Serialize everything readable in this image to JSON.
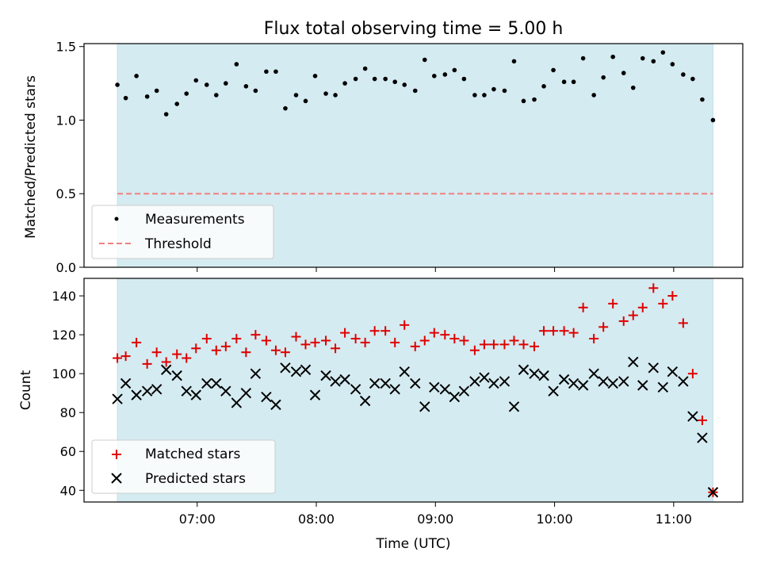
{
  "chart_data": [
    {
      "type": "scatter",
      "title": "Flux total observing time = 5.00 h",
      "ylabel": "Matched/Predicted stars",
      "xlabel": "",
      "ylim": [
        0,
        1.52
      ],
      "yticks": [
        "0.0",
        "0.5",
        "1.0",
        "1.5"
      ],
      "legend_position": "lower-left",
      "shaded_interval": {
        "start_hours": 6.33,
        "end_hours": 11.33,
        "color": "#d4ebf1"
      },
      "series": [
        {
          "name": "Measurements",
          "marker": "dot",
          "color": "#000000",
          "x": [
            6.33,
            6.4,
            6.49,
            6.58,
            6.66,
            6.74,
            6.83,
            6.91,
            6.99,
            7.08,
            7.16,
            7.24,
            7.33,
            7.41,
            7.49,
            7.58,
            7.66,
            7.74,
            7.83,
            7.91,
            7.99,
            8.08,
            8.16,
            8.24,
            8.33,
            8.41,
            8.49,
            8.58,
            8.66,
            8.74,
            8.83,
            8.91,
            8.99,
            9.08,
            9.16,
            9.24,
            9.33,
            9.41,
            9.49,
            9.58,
            9.66,
            9.74,
            9.83,
            9.91,
            9.99,
            10.08,
            10.16,
            10.24,
            10.33,
            10.41,
            10.49,
            10.58,
            10.66,
            10.74,
            10.83,
            10.91,
            10.99,
            11.08,
            11.16,
            11.24,
            11.33
          ],
          "y": [
            1.24,
            1.15,
            1.3,
            1.16,
            1.2,
            1.04,
            1.11,
            1.18,
            1.27,
            1.24,
            1.17,
            1.25,
            1.38,
            1.23,
            1.2,
            1.33,
            1.33,
            1.08,
            1.17,
            1.13,
            1.3,
            1.18,
            1.17,
            1.25,
            1.28,
            1.35,
            1.28,
            1.28,
            1.26,
            1.24,
            1.2,
            1.41,
            1.3,
            1.31,
            1.34,
            1.28,
            1.17,
            1.17,
            1.21,
            1.2,
            1.4,
            1.13,
            1.14,
            1.23,
            1.34,
            1.26,
            1.26,
            1.42,
            1.17,
            1.29,
            1.43,
            1.32,
            1.22,
            1.42,
            1.4,
            1.46,
            1.38,
            1.31,
            1.28,
            1.14,
            1.0
          ]
        },
        {
          "name": "Threshold",
          "marker": "dashed-line",
          "color": "#f08080",
          "y_value": 0.5
        }
      ]
    },
    {
      "type": "scatter",
      "title": "",
      "ylabel": "Count",
      "xlabel": "Time (UTC)",
      "ylim": [
        34,
        149
      ],
      "yticks": [
        "40",
        "60",
        "80",
        "100",
        "120",
        "140"
      ],
      "xlim_hours": [
        6.05,
        11.58
      ],
      "xticks": [
        "07:00",
        "08:00",
        "09:00",
        "10:00",
        "11:00"
      ],
      "legend_position": "lower-left",
      "shaded_interval": {
        "start_hours": 6.33,
        "end_hours": 11.33,
        "color": "#d4ebf1"
      },
      "series": [
        {
          "name": "Matched stars",
          "marker": "plus",
          "color": "#e00000",
          "x": [
            6.33,
            6.4,
            6.49,
            6.58,
            6.66,
            6.74,
            6.83,
            6.91,
            6.99,
            7.08,
            7.16,
            7.24,
            7.33,
            7.41,
            7.49,
            7.58,
            7.66,
            7.74,
            7.83,
            7.91,
            7.99,
            8.08,
            8.16,
            8.24,
            8.33,
            8.41,
            8.49,
            8.58,
            8.66,
            8.74,
            8.83,
            8.91,
            8.99,
            9.08,
            9.16,
            9.24,
            9.33,
            9.41,
            9.49,
            9.58,
            9.66,
            9.74,
            9.83,
            9.91,
            9.99,
            10.08,
            10.16,
            10.24,
            10.33,
            10.41,
            10.49,
            10.58,
            10.66,
            10.74,
            10.83,
            10.91,
            10.99,
            11.08,
            11.16,
            11.24,
            11.33
          ],
          "y": [
            108,
            109,
            116,
            105,
            111,
            106,
            110,
            108,
            113,
            118,
            112,
            114,
            118,
            111,
            120,
            117,
            112,
            111,
            119,
            115,
            116,
            117,
            113,
            121,
            118,
            116,
            122,
            122,
            116,
            125,
            114,
            117,
            121,
            120,
            118,
            117,
            112,
            115,
            115,
            115,
            117,
            115,
            114,
            122,
            122,
            122,
            121,
            134,
            118,
            124,
            136,
            127,
            130,
            134,
            144,
            136,
            140,
            126,
            100,
            76,
            39
          ]
        },
        {
          "name": "Predicted stars",
          "marker": "x",
          "color": "#000000",
          "x": [
            6.33,
            6.4,
            6.49,
            6.58,
            6.66,
            6.74,
            6.83,
            6.91,
            6.99,
            7.08,
            7.16,
            7.24,
            7.33,
            7.41,
            7.49,
            7.58,
            7.66,
            7.74,
            7.83,
            7.91,
            7.99,
            8.08,
            8.16,
            8.24,
            8.33,
            8.41,
            8.49,
            8.58,
            8.66,
            8.74,
            8.83,
            8.91,
            8.99,
            9.08,
            9.16,
            9.24,
            9.33,
            9.41,
            9.49,
            9.58,
            9.66,
            9.74,
            9.83,
            9.91,
            9.99,
            10.08,
            10.16,
            10.24,
            10.33,
            10.41,
            10.49,
            10.58,
            10.66,
            10.74,
            10.83,
            10.91,
            10.99,
            11.08,
            11.16,
            11.24,
            11.33
          ],
          "y": [
            87,
            95,
            89,
            91,
            92,
            102,
            99,
            91,
            89,
            95,
            95,
            91,
            85,
            90,
            100,
            88,
            84,
            103,
            101,
            102,
            89,
            99,
            96,
            97,
            92,
            86,
            95,
            95,
            92,
            101,
            95,
            83,
            93,
            92,
            88,
            91,
            96,
            98,
            95,
            96,
            83,
            102,
            100,
            99,
            91,
            97,
            95,
            94,
            100,
            96,
            95,
            96,
            106,
            94,
            103,
            93,
            101,
            96,
            78,
            67,
            39
          ]
        }
      ]
    }
  ]
}
